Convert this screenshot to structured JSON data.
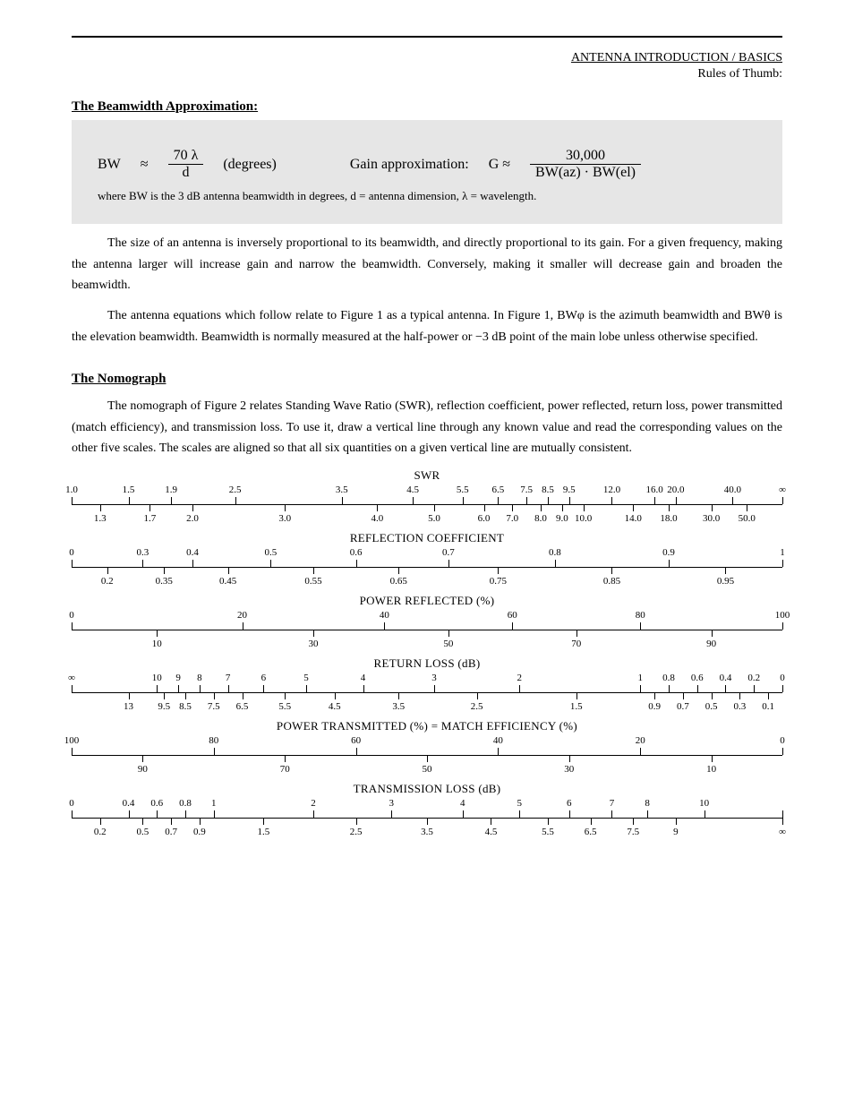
{
  "header": {
    "label_line1": "ANTENNA INTRODUCTION / BASICS",
    "label_line2": "Rules of Thumb:"
  },
  "equations": {
    "prefix": "The Beamwidth Approximation:",
    "bw_lhs": "BW",
    "bw_factor": "70 λ",
    "bw_den": "d",
    "bw_deg": "(degrees)",
    "gain_prefix": "Gain approximation:",
    "gain_lhs": "G ≈",
    "gain_num": "30,000",
    "gain_den": "BW(az) · BW(el)",
    "note": "where BW is the 3 dB antenna beamwidth in degrees, d = antenna dimension, λ = wavelength."
  },
  "p1": "The size of an antenna is inversely proportional to its beamwidth, and directly proportional to its gain. For a given frequency, making the antenna larger will increase gain and narrow the beamwidth. Conversely, making it smaller will decrease gain and broaden the beamwidth.",
  "p2": "The antenna equations which follow relate to Figure 1 as a typical antenna. In Figure 1, BWφ is the azimuth beamwidth and BWθ is the elevation beamwidth. Beamwidth is normally measured at the half-power or −3 dB point of the main lobe unless otherwise specified.",
  "sec2_title": "The Nomograph",
  "p3": "The nomograph of Figure 2 relates Standing Wave Ratio (SWR), reflection coefficient, power reflected, return loss, power transmitted (match efficiency), and transmission loss. To use it, draw a vertical line through any known value and read the corresponding values on the other five scales. The scales are aligned so that all six quantities on a given vertical line are mutually consistent.",
  "nomographs": [
    {
      "title": "SWR",
      "above": [
        {
          "p": 0,
          "l": "1.0"
        },
        {
          "p": 8,
          "l": "1.5"
        },
        {
          "p": 14,
          "l": "1.9"
        },
        {
          "p": 23,
          "l": "2.5"
        },
        {
          "p": 38,
          "l": "3.5"
        },
        {
          "p": 48,
          "l": "4.5"
        },
        {
          "p": 55,
          "l": "5.5"
        },
        {
          "p": 60,
          "l": "6.5"
        },
        {
          "p": 64,
          "l": "7.5"
        },
        {
          "p": 67,
          "l": "8.5"
        },
        {
          "p": 70,
          "l": "9.5"
        },
        {
          "p": 76,
          "l": "12.0"
        },
        {
          "p": 82,
          "l": "16.0"
        },
        {
          "p": 85,
          "l": "20.0"
        },
        {
          "p": 93,
          "l": "40.0"
        },
        {
          "p": 100,
          "l": "∞"
        }
      ],
      "below": [
        {
          "p": 4,
          "l": "1.3"
        },
        {
          "p": 11,
          "l": "1.7"
        },
        {
          "p": 17,
          "l": "2.0"
        },
        {
          "p": 30,
          "l": "3.0"
        },
        {
          "p": 43,
          "l": "4.0"
        },
        {
          "p": 51,
          "l": "5.0"
        },
        {
          "p": 58,
          "l": "6.0"
        },
        {
          "p": 62,
          "l": "7.0"
        },
        {
          "p": 66,
          "l": "8.0"
        },
        {
          "p": 69,
          "l": "9.0"
        },
        {
          "p": 72,
          "l": "10.0"
        },
        {
          "p": 79,
          "l": "14.0"
        },
        {
          "p": 84,
          "l": "18.0"
        },
        {
          "p": 90,
          "l": "30.0"
        },
        {
          "p": 95,
          "l": "50.0"
        }
      ]
    },
    {
      "title": "REFLECTION COEFFICIENT",
      "above": [
        {
          "p": 0,
          "l": "0"
        },
        {
          "p": 10,
          "l": "0.3"
        },
        {
          "p": 17,
          "l": "0.4"
        },
        {
          "p": 28,
          "l": "0.5"
        },
        {
          "p": 40,
          "l": "0.6"
        },
        {
          "p": 53,
          "l": "0.7"
        },
        {
          "p": 68,
          "l": "0.8"
        },
        {
          "p": 84,
          "l": "0.9"
        },
        {
          "p": 100,
          "l": "1"
        }
      ],
      "below": [
        {
          "p": 5,
          "l": "0.2"
        },
        {
          "p": 13,
          "l": "0.35"
        },
        {
          "p": 22,
          "l": "0.45"
        },
        {
          "p": 34,
          "l": "0.55"
        },
        {
          "p": 46,
          "l": "0.65"
        },
        {
          "p": 60,
          "l": "0.75"
        },
        {
          "p": 76,
          "l": "0.85"
        },
        {
          "p": 92,
          "l": "0.95"
        }
      ]
    },
    {
      "title": "POWER REFLECTED (%)",
      "above": [
        {
          "p": 0,
          "l": "0"
        },
        {
          "p": 24,
          "l": "20"
        },
        {
          "p": 44,
          "l": "40"
        },
        {
          "p": 62,
          "l": "60"
        },
        {
          "p": 80,
          "l": "80"
        },
        {
          "p": 100,
          "l": "100"
        }
      ],
      "below": [
        {
          "p": 12,
          "l": "10"
        },
        {
          "p": 34,
          "l": "30"
        },
        {
          "p": 53,
          "l": "50"
        },
        {
          "p": 71,
          "l": "70"
        },
        {
          "p": 90,
          "l": "90"
        }
      ]
    },
    {
      "title": "RETURN LOSS (dB)",
      "above": [
        {
          "p": 0,
          "l": "∞"
        },
        {
          "p": 12,
          "l": "10"
        },
        {
          "p": 15,
          "l": "9"
        },
        {
          "p": 18,
          "l": "8"
        },
        {
          "p": 22,
          "l": "7"
        },
        {
          "p": 27,
          "l": "6"
        },
        {
          "p": 33,
          "l": "5"
        },
        {
          "p": 41,
          "l": "4"
        },
        {
          "p": 51,
          "l": "3"
        },
        {
          "p": 63,
          "l": "2"
        },
        {
          "p": 80,
          "l": "1"
        },
        {
          "p": 84,
          "l": "0.8"
        },
        {
          "p": 88,
          "l": "0.6"
        },
        {
          "p": 92,
          "l": "0.4"
        },
        {
          "p": 96,
          "l": "0.2"
        },
        {
          "p": 100,
          "l": "0"
        }
      ],
      "below": [
        {
          "p": 8,
          "l": "13"
        },
        {
          "p": 13,
          "l": "9.5"
        },
        {
          "p": 16,
          "l": "8.5"
        },
        {
          "p": 20,
          "l": "7.5"
        },
        {
          "p": 24,
          "l": "6.5"
        },
        {
          "p": 30,
          "l": "5.5"
        },
        {
          "p": 37,
          "l": "4.5"
        },
        {
          "p": 46,
          "l": "3.5"
        },
        {
          "p": 57,
          "l": "2.5"
        },
        {
          "p": 71,
          "l": "1.5"
        },
        {
          "p": 82,
          "l": "0.9"
        },
        {
          "p": 86,
          "l": "0.7"
        },
        {
          "p": 90,
          "l": "0.5"
        },
        {
          "p": 94,
          "l": "0.3"
        },
        {
          "p": 98,
          "l": "0.1"
        }
      ]
    },
    {
      "title": "POWER TRANSMITTED (%) = MATCH EFFICIENCY (%)",
      "above": [
        {
          "p": 0,
          "l": "100"
        },
        {
          "p": 20,
          "l": "80"
        },
        {
          "p": 40,
          "l": "60"
        },
        {
          "p": 60,
          "l": "40"
        },
        {
          "p": 80,
          "l": "20"
        },
        {
          "p": 100,
          "l": "0"
        }
      ],
      "below": [
        {
          "p": 10,
          "l": "90"
        },
        {
          "p": 30,
          "l": "70"
        },
        {
          "p": 50,
          "l": "50"
        },
        {
          "p": 70,
          "l": "30"
        },
        {
          "p": 90,
          "l": "10"
        }
      ]
    },
    {
      "title": "TRANSMISSION LOSS (dB)",
      "above": [
        {
          "p": 0,
          "l": "0"
        },
        {
          "p": 8,
          "l": "0.4"
        },
        {
          "p": 12,
          "l": "0.6"
        },
        {
          "p": 16,
          "l": "0.8"
        },
        {
          "p": 20,
          "l": "1"
        },
        {
          "p": 34,
          "l": "2"
        },
        {
          "p": 45,
          "l": "3"
        },
        {
          "p": 55,
          "l": "4"
        },
        {
          "p": 63,
          "l": "5"
        },
        {
          "p": 70,
          "l": "6"
        },
        {
          "p": 76,
          "l": "7"
        },
        {
          "p": 81,
          "l": "8"
        },
        {
          "p": 89,
          "l": "10"
        },
        {
          "p": 100,
          "l": ""
        }
      ],
      "below": [
        {
          "p": 4,
          "l": "0.2"
        },
        {
          "p": 10,
          "l": "0.5"
        },
        {
          "p": 14,
          "l": "0.7"
        },
        {
          "p": 18,
          "l": "0.9"
        },
        {
          "p": 27,
          "l": "1.5"
        },
        {
          "p": 40,
          "l": "2.5"
        },
        {
          "p": 50,
          "l": "3.5"
        },
        {
          "p": 59,
          "l": "4.5"
        },
        {
          "p": 67,
          "l": "5.5"
        },
        {
          "p": 73,
          "l": "6.5"
        },
        {
          "p": 79,
          "l": "7.5"
        },
        {
          "p": 85,
          "l": "9"
        },
        {
          "p": 100,
          "l": "∞"
        }
      ]
    }
  ]
}
